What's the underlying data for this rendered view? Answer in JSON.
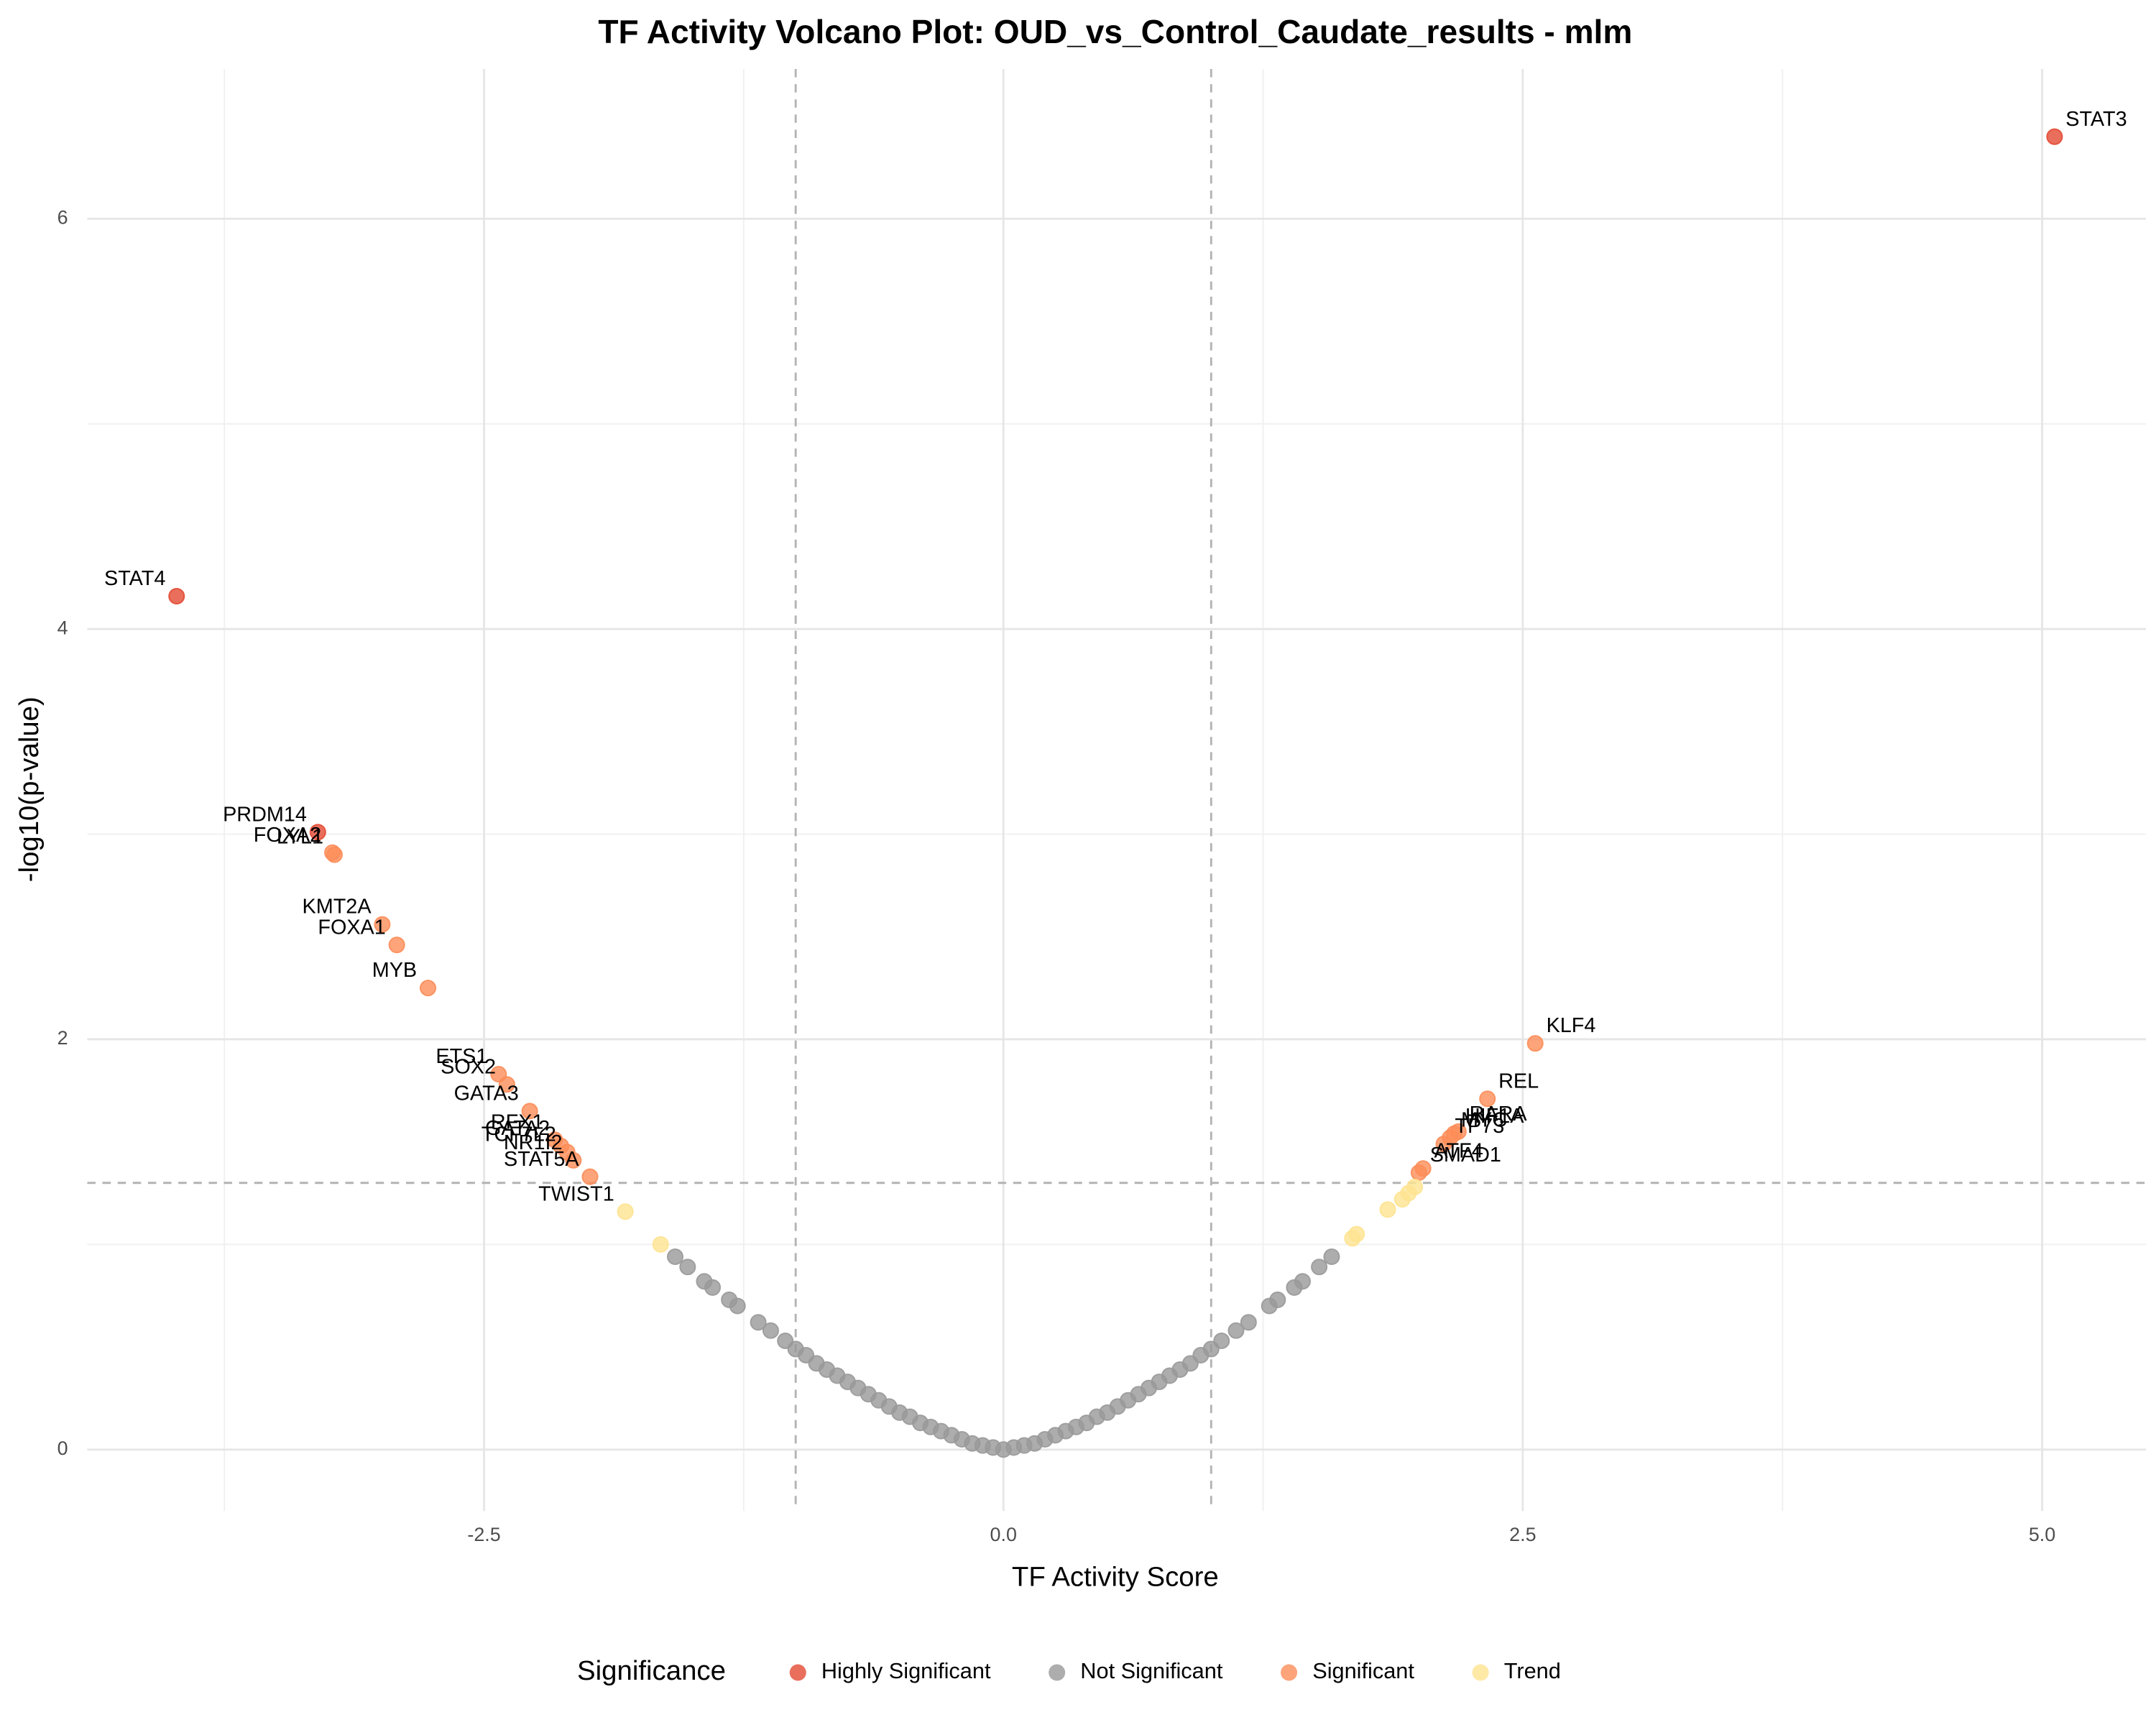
{
  "chart_data": {
    "type": "scatter",
    "title": "TF Activity Volcano Plot: OUD_vs_Control_Caudate_results - mlm",
    "x_label": "TF Activity Score",
    "y_label": "-log10(p-value)",
    "legend_title": "Significance",
    "legend_position": "bottom",
    "xlim": [
      -4.41,
      5.5
    ],
    "ylim": [
      -0.3,
      6.73
    ],
    "xticks": [
      -2.5,
      {
        "value": 0,
        "label": "0.0"
      },
      2.5,
      {
        "value": 5,
        "label": "5.0"
      }
    ],
    "yticks": [
      0,
      2,
      4,
      6
    ],
    "xminor": [
      -3.75,
      -1.25,
      1.25,
      3.75
    ],
    "yminor": [
      1,
      3,
      5
    ],
    "vlines": [
      -1,
      1
    ],
    "hline": 1.3,
    "grid": true,
    "series": [
      {
        "name": "Highly Significant",
        "color": "#e34a33",
        "x": [
          -3.98,
          -3.3,
          5.06
        ],
        "values": [
          4.16,
          3.01,
          6.4
        ],
        "labels": [
          "STAT4",
          "PRDM14",
          "STAT3"
        ]
      },
      {
        "name": "Not Significant",
        "color": "#999999",
        "x": [
          -1.58,
          -1.52,
          -1.44,
          -1.4,
          -1.32,
          -1.28,
          -1.18,
          -1.12,
          -1.05,
          -1.0,
          -0.95,
          -0.9,
          -0.85,
          -0.8,
          -0.75,
          -0.7,
          -0.65,
          -0.6,
          -0.55,
          -0.5,
          -0.45,
          -0.4,
          -0.35,
          -0.3,
          -0.25,
          -0.2,
          -0.15,
          -0.1,
          -0.05,
          0,
          0.05,
          0.1,
          0.15,
          0.2,
          0.25,
          0.3,
          0.35,
          0.4,
          0.45,
          0.5,
          0.55,
          0.6,
          0.65,
          0.7,
          0.75,
          0.8,
          0.85,
          0.9,
          0.95,
          1.0,
          1.05,
          1.12,
          1.18,
          1.28,
          1.32,
          1.4,
          1.44,
          1.52,
          1.58
        ],
        "values": [
          0.94,
          0.89,
          0.82,
          0.79,
          0.73,
          0.7,
          0.62,
          0.58,
          0.53,
          0.49,
          0.46,
          0.42,
          0.39,
          0.36,
          0.33,
          0.3,
          0.27,
          0.24,
          0.21,
          0.18,
          0.16,
          0.13,
          0.11,
          0.09,
          0.07,
          0.05,
          0.03,
          0.02,
          0.01,
          0,
          0.01,
          0.02,
          0.03,
          0.05,
          0.07,
          0.09,
          0.11,
          0.13,
          0.16,
          0.18,
          0.21,
          0.24,
          0.27,
          0.3,
          0.33,
          0.36,
          0.39,
          0.42,
          0.46,
          0.49,
          0.53,
          0.58,
          0.62,
          0.7,
          0.73,
          0.79,
          0.82,
          0.89,
          0.94
        ]
      },
      {
        "name": "Significant",
        "color": "#fc8d59",
        "x": [
          -3.23,
          -3.22,
          -2.99,
          -2.92,
          -2.77,
          -2.43,
          -2.39,
          -2.28,
          -2.16,
          -2.13,
          -2.1,
          -2.07,
          -1.99,
          2.56,
          2.33,
          2.19,
          2.17,
          2.12,
          2.15,
          2.02,
          2.0
        ],
        "values": [
          2.91,
          2.9,
          2.56,
          2.46,
          2.25,
          1.83,
          1.78,
          1.65,
          1.51,
          1.48,
          1.45,
          1.41,
          1.33,
          1.98,
          1.71,
          1.55,
          1.54,
          1.49,
          1.52,
          1.37,
          1.35
        ],
        "labels": [
          "FOXA2",
          "LYL1",
          "KMT2A",
          "FOXA1",
          "MYB",
          "ETS1",
          "SOX2",
          "GATA3",
          "RFX1",
          "GATA2",
          "TCF7L2",
          "NR1I2",
          "STAT5A",
          "KLF4",
          "REL",
          "RARA",
          "HIF1A",
          "TP73",
          "MYC",
          "ATF4",
          "SMAD1"
        ]
      },
      {
        "name": "Trend",
        "color": "#fee391",
        "x": [
          -1.82,
          -1.65,
          1.68,
          1.7,
          1.85,
          1.92,
          1.95,
          1.98
        ],
        "values": [
          1.16,
          1.0,
          1.03,
          1.05,
          1.17,
          1.22,
          1.25,
          1.28
        ],
        "labels": [
          "TWIST1",
          null,
          null,
          null,
          null,
          null,
          null,
          null
        ]
      }
    ]
  }
}
